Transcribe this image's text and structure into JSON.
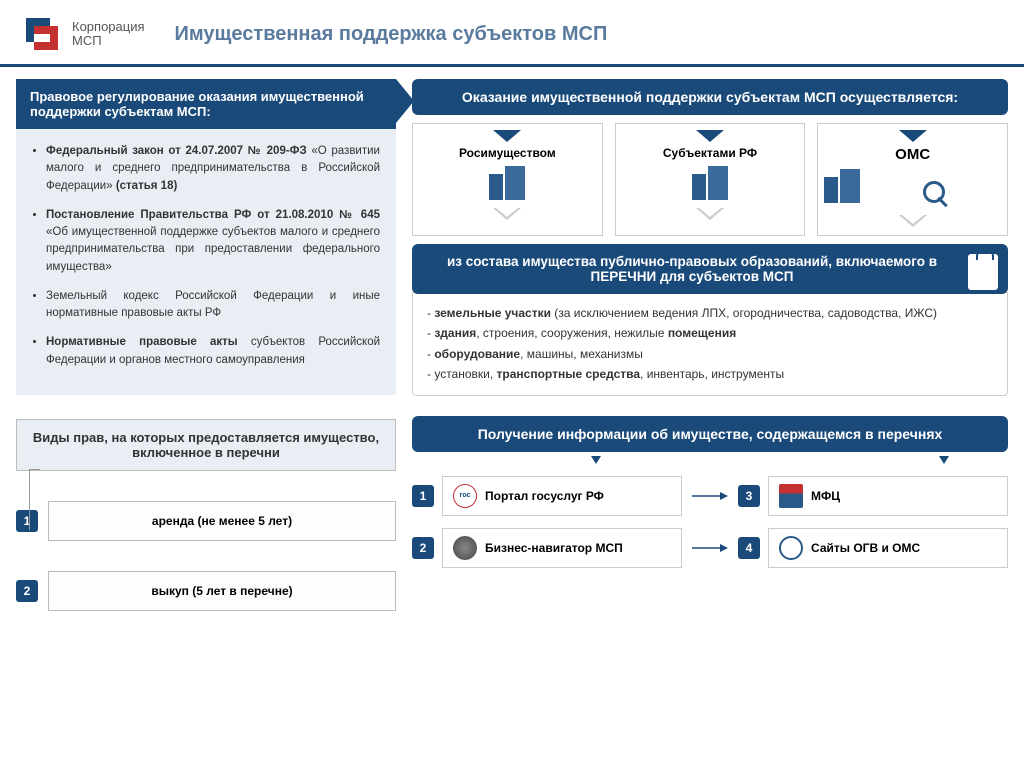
{
  "colors": {
    "primary": "#1a4a7a",
    "panel": "#e8eef4",
    "border": "#cccccc",
    "text": "#333333",
    "title": "#5a7a9e"
  },
  "header": {
    "logo_line1": "Корпорация",
    "logo_line2": "МСП",
    "title": "Имущественная поддержка субъектов МСП"
  },
  "left": {
    "banner": "Правовое регулирование оказания имущественной поддержки субъектам МСП:",
    "items": [
      "<b>Федеральный закон от 24.07.2007 № 209-ФЗ</b> «О развитии малого и среднего предпринимательства в Российской Федерации» <b>(статья 18)</b>",
      "<b>Постановление Правительства РФ от 21.08.2010 № 645</b> «Об имущественной поддержке субъектов малого и среднего предпринимательства при предоставлении федерального имущества»",
      "Земельный кодекс Российской Федерации и иные нормативные правовые акты РФ",
      "<b>Нормативные правовые акты</b> субъектов Российской Федерации и органов местного самоуправления"
    ],
    "types_header": "Виды прав, на которых предоставляется имущество, включенное в перечни",
    "types": [
      {
        "num": "1",
        "label": "аренда (не менее 5 лет)"
      },
      {
        "num": "2",
        "label": "выкуп (5 лет в перечне)"
      }
    ]
  },
  "right": {
    "top_banner": "Оказание имущественной поддержки субъектам МСП осуществляется:",
    "providers": [
      {
        "label": "Росимуществом"
      },
      {
        "label": "Субъектами РФ"
      },
      {
        "label": "ОМС"
      }
    ],
    "composition_banner": "из состава имущества публично-правовых образований, включаемого в ПЕРЕЧНИ для субъектов МСП",
    "composition_items": [
      "- <b>земельные участки</b> (за исключением ведения ЛПХ, огородничества, садоводства, ИЖС)",
      "- <b>здания</b>, строения, сооружения, нежилые <b>помещения</b>",
      "- <b>оборудование</b>, машины, механизмы",
      "- установки, <b>транспортные средства</b>, инвентарь, инструменты"
    ],
    "info_banner": "Получение информации об имуществе, содержащемся в перечнях",
    "info_items": [
      {
        "num": "1",
        "label": "Портал госуслуг РФ"
      },
      {
        "num": "3",
        "label": "МФЦ"
      },
      {
        "num": "2",
        "label": "Бизнес-навигатор МСП"
      },
      {
        "num": "4",
        "label": "Сайты ОГВ и ОМС"
      }
    ]
  }
}
